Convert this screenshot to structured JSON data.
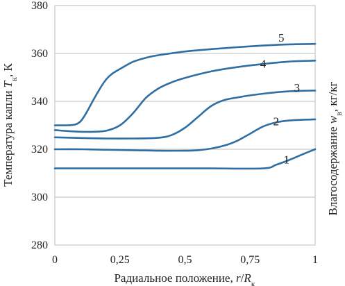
{
  "chart_data": {
    "type": "line",
    "x_tick_labels": [
      "0",
      "0,25",
      "0,5",
      "0,75",
      "1"
    ],
    "x_ticks": [
      0,
      0.25,
      0.5,
      0.75,
      1
    ],
    "y_tick_labels": [
      "280",
      "300",
      "320",
      "340",
      "360",
      "380"
    ],
    "y_ticks": [
      280,
      300,
      320,
      340,
      360,
      380
    ],
    "xlim": [
      0,
      1
    ],
    "ylim": [
      280,
      380
    ],
    "xlabel": {
      "main": "Радиальное положение, ",
      "var": "r",
      "slash": "/",
      "sym": "R",
      "sub": "к"
    },
    "ylabel": {
      "main": "Температура капли ",
      "sym": "T",
      "sub": "к",
      "unit": ", К"
    },
    "y2label": {
      "main": "Влагосодержание ",
      "sym": "w",
      "sub": "в",
      "unit": ", кг/кг"
    },
    "grid": "horizontal",
    "series": [
      {
        "label": "1",
        "label_x": 0.89,
        "label_y": 314,
        "x": [
          0,
          0.2,
          0.4,
          0.6,
          0.8,
          0.85,
          0.9,
          0.95,
          1.0
        ],
        "y": [
          312,
          312,
          312,
          312,
          312,
          313.5,
          315.5,
          317.8,
          320
        ]
      },
      {
        "label": "2",
        "label_x": 0.85,
        "label_y": 330,
        "x": [
          0,
          0.1,
          0.2,
          0.3,
          0.4,
          0.5,
          0.55,
          0.6,
          0.65,
          0.7,
          0.75,
          0.8,
          0.85,
          0.9,
          0.95,
          1.0
        ],
        "y": [
          320,
          320,
          319.8,
          319.6,
          319.4,
          319.4,
          319.6,
          320.3,
          321.5,
          323.5,
          326.5,
          329.5,
          331.2,
          332,
          332.3,
          332.5
        ]
      },
      {
        "label": "3",
        "label_x": 0.93,
        "label_y": 344,
        "x": [
          0,
          0.1,
          0.2,
          0.3,
          0.4,
          0.45,
          0.5,
          0.55,
          0.6,
          0.65,
          0.7,
          0.75,
          0.8,
          0.85,
          0.9,
          0.95,
          1.0
        ],
        "y": [
          325,
          324.7,
          324.5,
          324.5,
          324.8,
          326,
          329,
          333.5,
          338,
          340.5,
          341.6,
          342.5,
          343.2,
          343.8,
          344.2,
          344.4,
          344.5
        ]
      },
      {
        "label": "4",
        "label_x": 0.8,
        "label_y": 354,
        "x": [
          0,
          0.05,
          0.1,
          0.15,
          0.2,
          0.25,
          0.3,
          0.35,
          0.4,
          0.45,
          0.5,
          0.6,
          0.7,
          0.8,
          0.9,
          1.0
        ],
        "y": [
          328,
          327.6,
          327.3,
          327.3,
          327.8,
          330,
          335,
          341.5,
          345.5,
          348,
          349.8,
          352.5,
          354.3,
          355.6,
          356.6,
          357
        ]
      },
      {
        "label": "5",
        "label_x": 0.87,
        "label_y": 365,
        "x": [
          0,
          0.05,
          0.08,
          0.1,
          0.12,
          0.15,
          0.18,
          0.2,
          0.22,
          0.25,
          0.3,
          0.35,
          0.4,
          0.5,
          0.6,
          0.7,
          0.8,
          0.9,
          1.0
        ],
        "y": [
          330,
          330,
          330.4,
          331.8,
          335,
          341,
          346.5,
          349.5,
          351.5,
          353.5,
          356.5,
          358.2,
          359.3,
          360.8,
          361.8,
          362.6,
          363.3,
          363.8,
          364
        ]
      }
    ]
  }
}
